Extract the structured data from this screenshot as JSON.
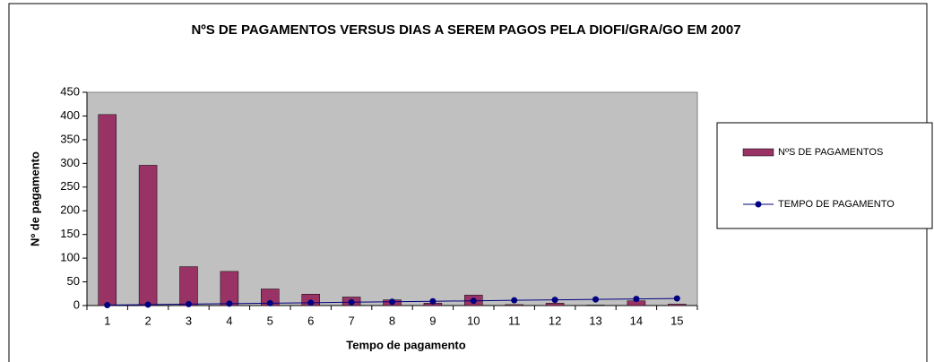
{
  "chart_data": {
    "type": "bar",
    "title": "NºS DE PAGAMENTOS VERSUS DIAS A SEREM PAGOS PELA DIOFI/GRA/GO EM 2007",
    "x_label": "Tempo de pagamento",
    "y_label": "Nº de pagamento",
    "categories": [
      "1",
      "2",
      "3",
      "4",
      "5",
      "6",
      "7",
      "8",
      "9",
      "10",
      "11",
      "12",
      "13",
      "14",
      "15"
    ],
    "series": [
      {
        "name": "NºS DE PAGAMENTOS",
        "type": "bar",
        "color": "#993366",
        "values": [
          403,
          296,
          82,
          72,
          35,
          24,
          18,
          12,
          5,
          22,
          2,
          5,
          1,
          10,
          3
        ]
      },
      {
        "name": "TEMPO DE PAGAMENTO",
        "type": "line",
        "color": "#000080",
        "values": [
          1,
          2,
          3,
          4,
          5,
          6,
          7,
          8,
          9,
          10,
          11,
          12,
          13,
          14,
          15
        ]
      }
    ],
    "ylim": [
      0,
      450
    ],
    "yticks": [
      0,
      50,
      100,
      150,
      200,
      250,
      300,
      350,
      400,
      450
    ],
    "plot_background": "#c0c0c0",
    "legend": "right"
  }
}
